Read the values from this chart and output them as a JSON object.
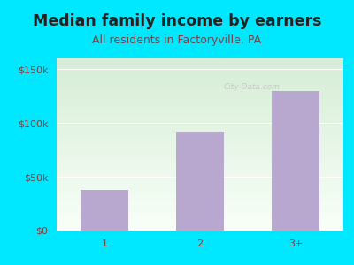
{
  "title": "Median family income by earners",
  "subtitle": "All residents in Factoryville, PA",
  "categories": [
    "1",
    "2",
    "3+"
  ],
  "values": [
    38000,
    92000,
    130000
  ],
  "bar_color": "#b8a8d0",
  "yticks": [
    0,
    50000,
    100000,
    150000
  ],
  "ytick_labels": [
    "$0",
    "$50k",
    "$100k",
    "$150k"
  ],
  "ylim": [
    0,
    160000
  ],
  "background_color": "#00e8ff",
  "plot_bg_color_top": "#d6edd6",
  "plot_bg_color_bottom": "#f8fff8",
  "title_color": "#222222",
  "subtitle_color": "#7a4040",
  "tick_color": "#7a4040",
  "title_fontsize": 12.5,
  "subtitle_fontsize": 9,
  "tick_fontsize": 8
}
